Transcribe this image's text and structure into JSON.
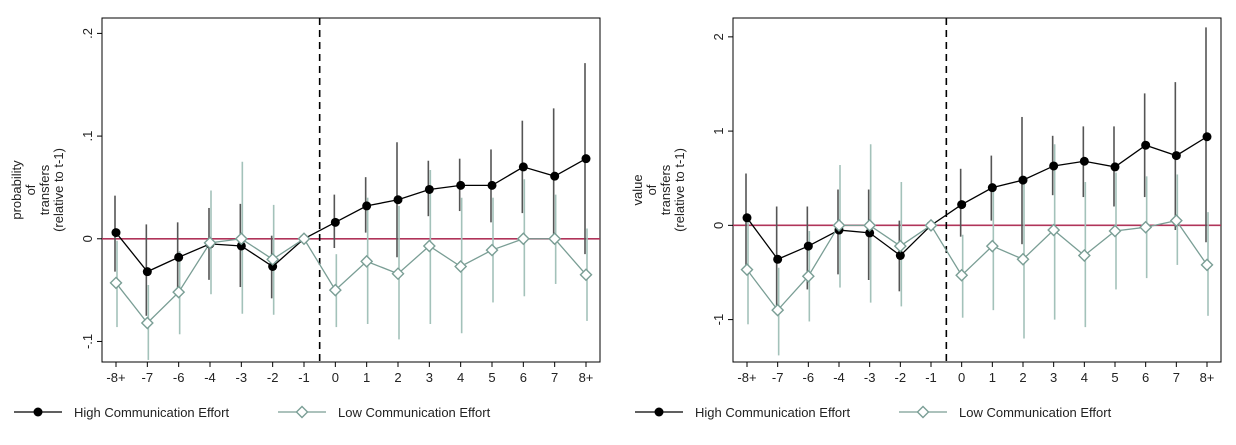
{
  "chart_data": [
    {
      "type": "line",
      "title": "",
      "xlabel": "",
      "ylabel_lines": [
        "probability",
        "of",
        "transfers",
        "(relative to t-1)"
      ],
      "categories": [
        "-8+",
        "-7",
        "-6",
        "-4",
        "-3",
        "-2",
        "-1",
        "0",
        "1",
        "2",
        "3",
        "4",
        "5",
        "6",
        "7",
        "8+"
      ],
      "y_ticks": [
        -0.1,
        0,
        0.1,
        0.2
      ],
      "y_tick_labels": [
        "-.1",
        "0",
        ".1",
        ".2"
      ],
      "ylim": [
        -0.12,
        0.215
      ],
      "reference_line_y": 0,
      "event_line_after_category": "-1",
      "legend_position": "bottom",
      "series": [
        {
          "name": "High Communication Effort",
          "marker": "circle-filled",
          "color": "#000000",
          "ci_color": "#555555",
          "values": [
            0.006,
            -0.032,
            -0.018,
            -0.005,
            -0.007,
            -0.027,
            0,
            0.016,
            0.032,
            0.038,
            0.048,
            0.052,
            0.052,
            0.07,
            0.061,
            0.078
          ],
          "ci_low": [
            -0.032,
            -0.075,
            -0.052,
            -0.04,
            -0.047,
            -0.058,
            0,
            -0.009,
            0.006,
            -0.018,
            0.022,
            0.027,
            0.016,
            0.025,
            -0.005,
            -0.015
          ],
          "ci_high": [
            0.042,
            0.014,
            0.016,
            0.03,
            0.034,
            0.003,
            0,
            0.043,
            0.06,
            0.094,
            0.076,
            0.078,
            0.087,
            0.115,
            0.127,
            0.171
          ]
        },
        {
          "name": "Low Communication Effort",
          "marker": "diamond-hollow",
          "color": "#7a9e95",
          "ci_color": "#a3c2ba",
          "values": [
            -0.043,
            -0.082,
            -0.052,
            -0.004,
            0,
            -0.02,
            0,
            -0.05,
            -0.022,
            -0.034,
            -0.007,
            -0.027,
            -0.011,
            0,
            0,
            -0.035
          ],
          "ci_low": [
            -0.086,
            -0.118,
            -0.093,
            -0.054,
            -0.073,
            -0.074,
            0,
            -0.086,
            -0.083,
            -0.098,
            -0.083,
            -0.092,
            -0.062,
            -0.056,
            -0.044,
            -0.08
          ],
          "ci_high": [
            -0.002,
            -0.045,
            -0.012,
            0.047,
            0.075,
            0.033,
            0,
            -0.015,
            0.04,
            0.032,
            0.067,
            0.04,
            0.04,
            0.058,
            0.043,
            0.01
          ]
        }
      ]
    },
    {
      "type": "line",
      "title": "",
      "xlabel": "",
      "ylabel_lines": [
        "value",
        "of",
        "transfers",
        "(relative to t-1)"
      ],
      "categories": [
        "-8+",
        "-7",
        "-6",
        "-4",
        "-3",
        "-2",
        "-1",
        "0",
        "1",
        "2",
        "3",
        "4",
        "5",
        "6",
        "7",
        "8+"
      ],
      "y_ticks": [
        -1,
        0,
        1,
        2
      ],
      "y_tick_labels": [
        "-1",
        "0",
        "1",
        "2"
      ],
      "ylim": [
        -1.45,
        2.2
      ],
      "reference_line_y": 0,
      "event_line_after_category": "-1",
      "legend_position": "bottom",
      "series": [
        {
          "name": "High Communication Effort",
          "marker": "circle-filled",
          "color": "#000000",
          "ci_color": "#555555",
          "values": [
            0.08,
            -0.36,
            -0.22,
            -0.05,
            -0.08,
            -0.32,
            0,
            0.22,
            0.4,
            0.48,
            0.63,
            0.68,
            0.62,
            0.85,
            0.74,
            0.94
          ],
          "ci_low": [
            -0.42,
            -0.95,
            -0.68,
            -0.52,
            -0.58,
            -0.7,
            0,
            -0.12,
            0.05,
            -0.2,
            0.32,
            0.3,
            0.2,
            0.3,
            -0.05,
            -0.18
          ],
          "ci_high": [
            0.55,
            0.2,
            0.2,
            0.38,
            0.38,
            0.05,
            0,
            0.6,
            0.74,
            1.15,
            0.95,
            1.05,
            1.05,
            1.4,
            1.52,
            2.1
          ]
        },
        {
          "name": "Low Communication Effort",
          "marker": "diamond-hollow",
          "color": "#7a9e95",
          "ci_color": "#a3c2ba",
          "values": [
            -0.47,
            -0.9,
            -0.54,
            0,
            0,
            -0.22,
            0,
            -0.53,
            -0.22,
            -0.36,
            -0.05,
            -0.32,
            -0.06,
            -0.02,
            0.05,
            -0.42
          ],
          "ci_low": [
            -1.05,
            -1.38,
            -1.02,
            -0.66,
            -0.82,
            -0.86,
            0,
            -0.98,
            -0.9,
            -1.2,
            -1.0,
            -1.08,
            -0.68,
            -0.56,
            -0.42,
            -0.96
          ],
          "ci_high": [
            0.1,
            -0.45,
            -0.06,
            0.64,
            0.86,
            0.46,
            0,
            -0.1,
            0.42,
            0.5,
            0.86,
            0.46,
            0.56,
            0.52,
            0.54,
            0.14
          ]
        }
      ]
    }
  ]
}
